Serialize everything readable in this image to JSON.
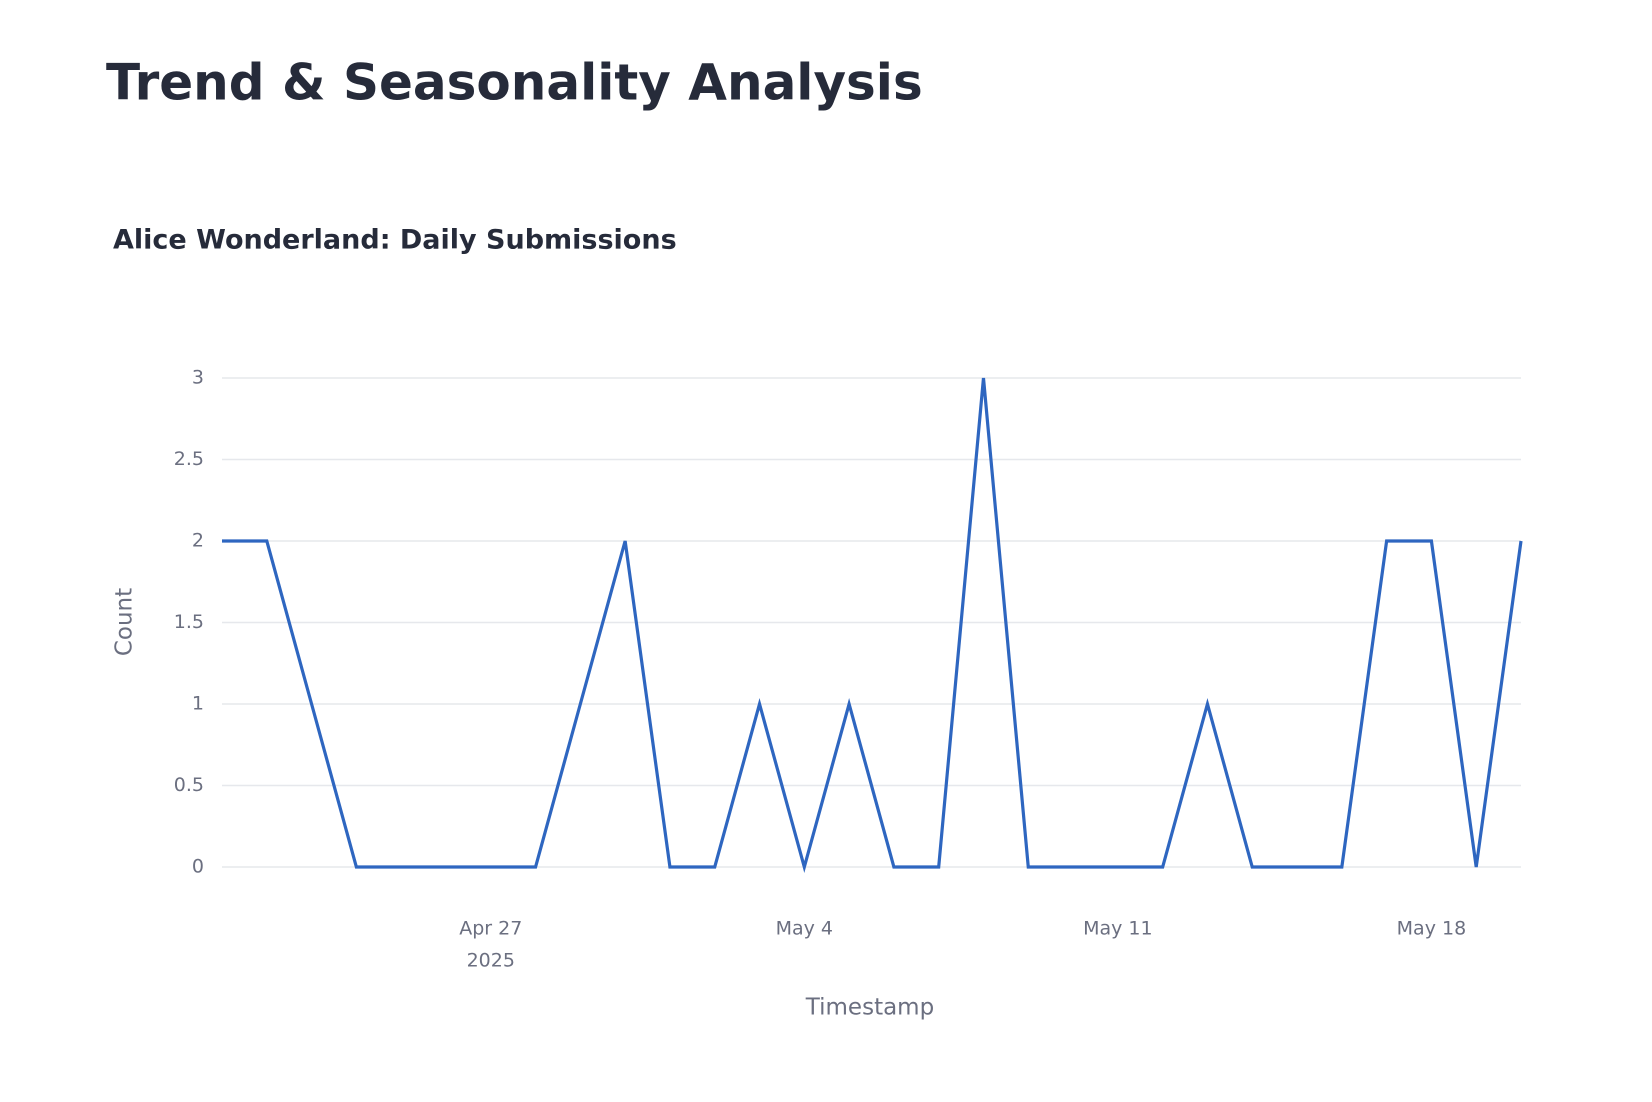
{
  "header": {
    "title": "Trend & Seasonality Analysis"
  },
  "chart_data": {
    "type": "line",
    "title": "Alice Wonderland: Daily Submissions",
    "x_label": "Timestamp",
    "y_label": "Count",
    "x": [
      "2025-04-21",
      "2025-04-22",
      "2025-04-23",
      "2025-04-24",
      "2025-04-25",
      "2025-04-26",
      "2025-04-27",
      "2025-04-28",
      "2025-04-29",
      "2025-04-30",
      "2025-05-01",
      "2025-05-02",
      "2025-05-03",
      "2025-05-04",
      "2025-05-05",
      "2025-05-06",
      "2025-05-07",
      "2025-05-08",
      "2025-05-09",
      "2025-05-10",
      "2025-05-11",
      "2025-05-12",
      "2025-05-13",
      "2025-05-14",
      "2025-05-15",
      "2025-05-16",
      "2025-05-17",
      "2025-05-18",
      "2025-05-19",
      "2025-05-20"
    ],
    "series": [
      {
        "name": "Count",
        "color": "#2e66c0",
        "values": [
          2,
          2,
          1,
          0,
          0,
          0,
          0,
          0,
          1,
          2,
          0,
          0,
          1,
          0,
          1,
          0,
          0,
          3,
          0,
          0,
          0,
          0,
          1,
          0,
          0,
          0,
          2,
          2,
          0,
          2
        ]
      }
    ],
    "xlim": [
      "2025-04-21",
      "2025-05-20"
    ],
    "xticks": [
      {
        "value": "2025-04-27",
        "label": "Apr 27",
        "year": "2025"
      },
      {
        "value": "2025-05-04",
        "label": "May 4"
      },
      {
        "value": "2025-05-11",
        "label": "May 11"
      },
      {
        "value": "2025-05-18",
        "label": "May 18"
      }
    ],
    "ylim": [
      0,
      3
    ],
    "yticks": [
      0,
      0.5,
      1,
      1.5,
      2,
      2.5,
      3
    ],
    "grid": true
  }
}
